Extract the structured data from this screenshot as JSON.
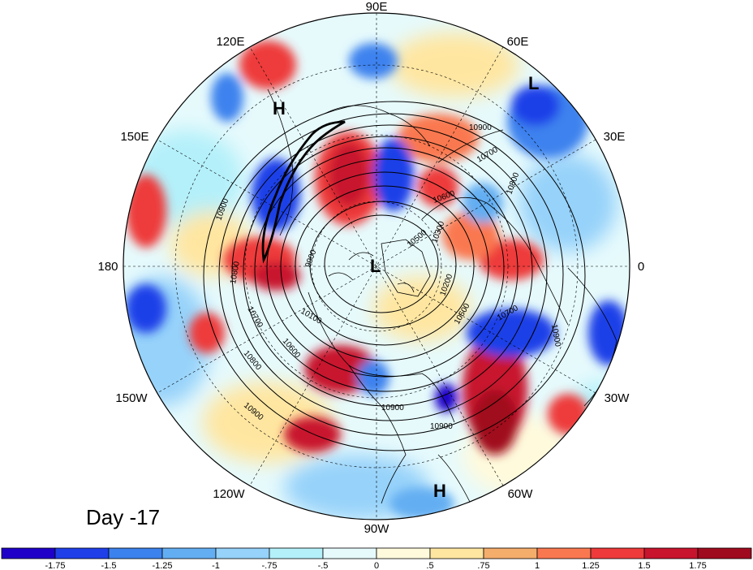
{
  "figure": {
    "day_label": "Day -17",
    "projection": "north-polar-stereographic",
    "longitude_labels": [
      "90E",
      "60E",
      "30E",
      "0",
      "30W",
      "60W",
      "90W",
      "120W",
      "150W",
      "180",
      "150E",
      "120E"
    ],
    "pressure_centers": [
      {
        "type": "L",
        "location": "north-pole"
      },
      {
        "type": "L",
        "location": "northern-scandinavia"
      },
      {
        "type": "H",
        "location": "kamchatka"
      },
      {
        "type": "H",
        "location": "western-atlantic"
      }
    ],
    "contour_labels": [
      "10900",
      "10900",
      "10900",
      "10900",
      "10900",
      "10900",
      "10800",
      "10800",
      "10800",
      "10700",
      "10700",
      "10700",
      "10600",
      "10600",
      "10600",
      "10500",
      "10300",
      "10200",
      "10100",
      "9900"
    ],
    "colorbar": {
      "tick_labels": [
        "-1.75",
        "-1.5",
        "-1.25",
        "-1",
        "-.75",
        "-.5",
        "0",
        ".5",
        ".75",
        "1",
        "1.25",
        "1.5",
        "1.75"
      ],
      "colors": [
        "#1e00c8",
        "#1f3fe8",
        "#3c82ee",
        "#63aef2",
        "#96d2fa",
        "#b4f0fa",
        "#e6fafc",
        "#fffadc",
        "#ffe6a0",
        "#f5ad6c",
        "#fa7850",
        "#ee3a3a",
        "#c8142d",
        "#a00a1e"
      ]
    }
  }
}
